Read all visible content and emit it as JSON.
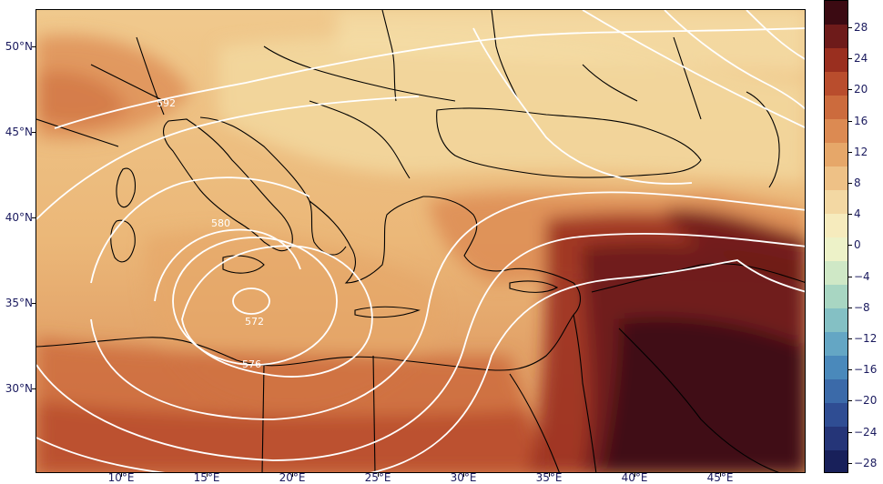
{
  "map": {
    "lat_labels": [
      "50°N",
      "45°N",
      "40°N",
      "35°N",
      "30°N"
    ],
    "lon_labels": [
      "10°E",
      "15°E",
      "20°E",
      "25°E",
      "30°E",
      "35°E",
      "40°E",
      "45°E"
    ],
    "contour_labels": [
      "592",
      "580",
      "572",
      "576"
    ],
    "colors": {
      "contour": "#ffffff",
      "coastline": "#000000"
    }
  },
  "colorbar": {
    "tick_labels": [
      "28",
      "24",
      "20",
      "16",
      "12",
      "8",
      "4",
      "0",
      "−4",
      "−8",
      "−12",
      "−16",
      "−20",
      "−24",
      "−28"
    ],
    "colors": [
      "#3b0a12",
      "#6e1b1a",
      "#9a2f1f",
      "#b94d2d",
      "#cc6b3d",
      "#dc8a52",
      "#e6a769",
      "#eec186",
      "#f3d8a3",
      "#f6ebbd",
      "#edf2c8",
      "#cfe8c6",
      "#a8d6c2",
      "#84c0c4",
      "#64a6c4",
      "#4a89bb",
      "#3b6aa9",
      "#2f4d93",
      "#253578",
      "#18205a"
    ]
  }
}
